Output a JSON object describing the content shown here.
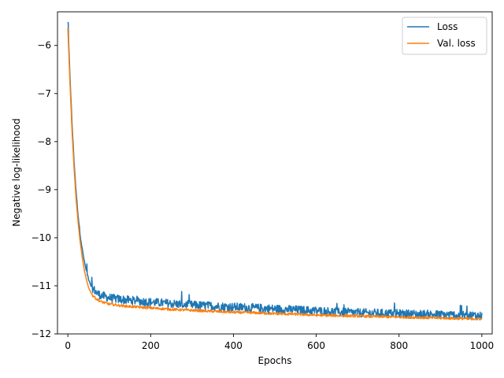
{
  "chart_data": {
    "type": "line",
    "xlabel": "Epochs",
    "ylabel": "Negative log-likelihood",
    "xlim": [
      -25,
      1025
    ],
    "ylim": [
      -12,
      -5.3
    ],
    "xticks": [
      0,
      200,
      400,
      600,
      800,
      1000
    ],
    "yticks": [
      -12,
      -11,
      -10,
      -9,
      -8,
      -7,
      -6
    ],
    "xtick_labels": [
      "0",
      "200",
      "400",
      "600",
      "800",
      "1000"
    ],
    "ytick_labels": [
      "−12",
      "−11",
      "−10",
      "−9",
      "−8",
      "−7",
      "−6"
    ],
    "legend_position": "top-right",
    "grid": false,
    "series": [
      {
        "name": "Loss",
        "color": "#1f77b4",
        "x": [
          0,
          5,
          10,
          15,
          20,
          25,
          30,
          35,
          40,
          45,
          50,
          55,
          60,
          70,
          80,
          100,
          125,
          150,
          200,
          250,
          300,
          350,
          400,
          450,
          500,
          550,
          600,
          650,
          700,
          750,
          800,
          850,
          900,
          950,
          1000
        ],
        "y": [
          -5.52,
          -6.6,
          -7.6,
          -8.4,
          -9.05,
          -9.55,
          -9.95,
          -10.25,
          -10.5,
          -10.7,
          -10.85,
          -10.97,
          -11.05,
          -11.15,
          -11.2,
          -11.25,
          -11.28,
          -11.3,
          -11.34,
          -11.37,
          -11.4,
          -11.42,
          -11.44,
          -11.46,
          -11.48,
          -11.5,
          -11.52,
          -11.54,
          -11.56,
          -11.57,
          -11.58,
          -11.59,
          -11.6,
          -11.61,
          -11.62
        ],
        "noise_amplitude": 0.09
      },
      {
        "name": "Val. loss",
        "color": "#ff7f0e",
        "x": [
          0,
          5,
          10,
          15,
          20,
          25,
          30,
          35,
          40,
          45,
          50,
          55,
          60,
          70,
          80,
          100,
          125,
          150,
          200,
          250,
          300,
          350,
          400,
          450,
          500,
          550,
          600,
          650,
          700,
          750,
          800,
          850,
          900,
          950,
          1000
        ],
        "y": [
          -5.62,
          -6.75,
          -7.75,
          -8.55,
          -9.2,
          -9.7,
          -10.1,
          -10.42,
          -10.68,
          -10.88,
          -11.03,
          -11.13,
          -11.2,
          -11.28,
          -11.33,
          -11.38,
          -11.41,
          -11.43,
          -11.46,
          -11.49,
          -11.51,
          -11.53,
          -11.55,
          -11.56,
          -11.58,
          -11.59,
          -11.61,
          -11.62,
          -11.63,
          -11.64,
          -11.65,
          -11.66,
          -11.67,
          -11.68,
          -11.69
        ],
        "noise_amplitude": 0.025
      }
    ]
  }
}
